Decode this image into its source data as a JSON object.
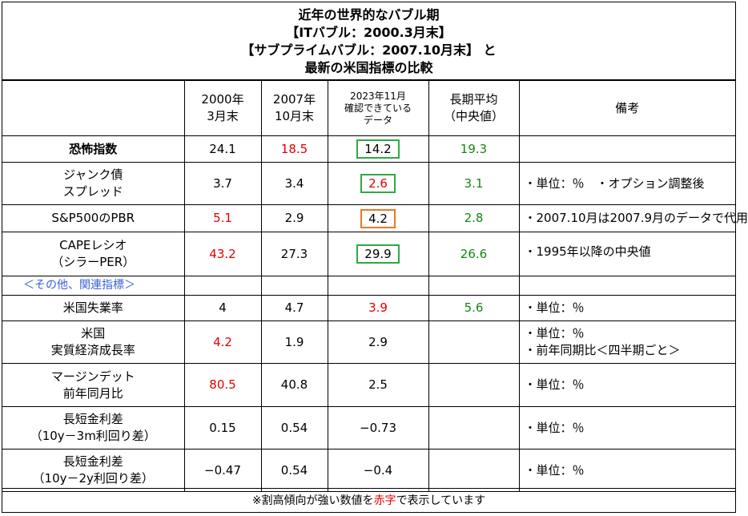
{
  "title": {
    "line1": "近年の世界的なバブル期",
    "line2": "【ITバブル：2000.3月末】",
    "line3": "【サブプライムバブル：2007.10月末】 と",
    "line4": "最新の米国指標の比較"
  },
  "headers": {
    "col2000": [
      "2000年",
      "3月末"
    ],
    "col2007": [
      "2007年",
      "10月末"
    ],
    "col2023": [
      "2023年11月",
      "確認できている",
      "データ"
    ],
    "colAvg": [
      "長期平均",
      "（中央値）"
    ],
    "colNote": "備考"
  },
  "rows": [
    {
      "label": [
        "恐怖指数"
      ],
      "v2000": "24.1",
      "v2007": "18.5",
      "v2023": "14.2",
      "avg": "19.3",
      "note": ""
    },
    {
      "label": [
        "ジャンク債",
        "スプレッド"
      ],
      "v2000": "3.7",
      "v2007": "3.4",
      "v2023": "2.6",
      "avg": "3.1",
      "note": "・単位：％　・オプション調整後"
    },
    {
      "label": [
        "S&P500のPBR"
      ],
      "v2000": "5.1",
      "v2007": "2.9",
      "v2023": "4.2",
      "avg": "2.8",
      "note": "・2007.10月は2007.9月のデータで代用"
    },
    {
      "label": [
        "CAPEレシオ",
        "（シラーPER）"
      ],
      "v2000": "43.2",
      "v2007": "27.3",
      "v2023": "29.9",
      "avg": "26.6",
      "note": "・1995年以降の中央値"
    },
    {
      "label": [
        "米国失業率"
      ],
      "v2000": "4",
      "v2007": "4.7",
      "v2023": "3.9",
      "avg": "5.6",
      "note": "・単位：％"
    },
    {
      "label": [
        "米国",
        "実質経済成長率"
      ],
      "v2000": "4.2",
      "v2007": "1.9",
      "v2023": "2.9",
      "avg": "",
      "note": [
        "・単位：％",
        "・前年同期比＜四半期ごと＞"
      ]
    },
    {
      "label": [
        "マージンデット",
        "前年同月比"
      ],
      "v2000": "80.5",
      "v2007": "40.8",
      "v2023": "2.5",
      "avg": "",
      "note": "・単位：％"
    },
    {
      "label": [
        "長短金利差",
        "（10y－3m利回り差）"
      ],
      "v2000": "0.15",
      "v2007": "0.54",
      "v2023": "−0.73",
      "avg": "",
      "note": "・単位：％"
    },
    {
      "label": [
        "長短金利差",
        "（10y－2y利回り差）"
      ],
      "v2000": "−0.47",
      "v2007": "0.54",
      "v2023": "−0.4",
      "avg": "",
      "note": "・単位：％"
    }
  ],
  "section_label": "＜その他、関連指標＞",
  "footer": {
    "before": "※割高傾向が強い数値を",
    "highlight": "赤字",
    "after": "で表示しています"
  },
  "colors": {
    "red": "#e00000",
    "green": "#118811",
    "box_green": "#2eaa44",
    "box_orange": "#ee7722",
    "section_blue": "#3a5fd8"
  }
}
